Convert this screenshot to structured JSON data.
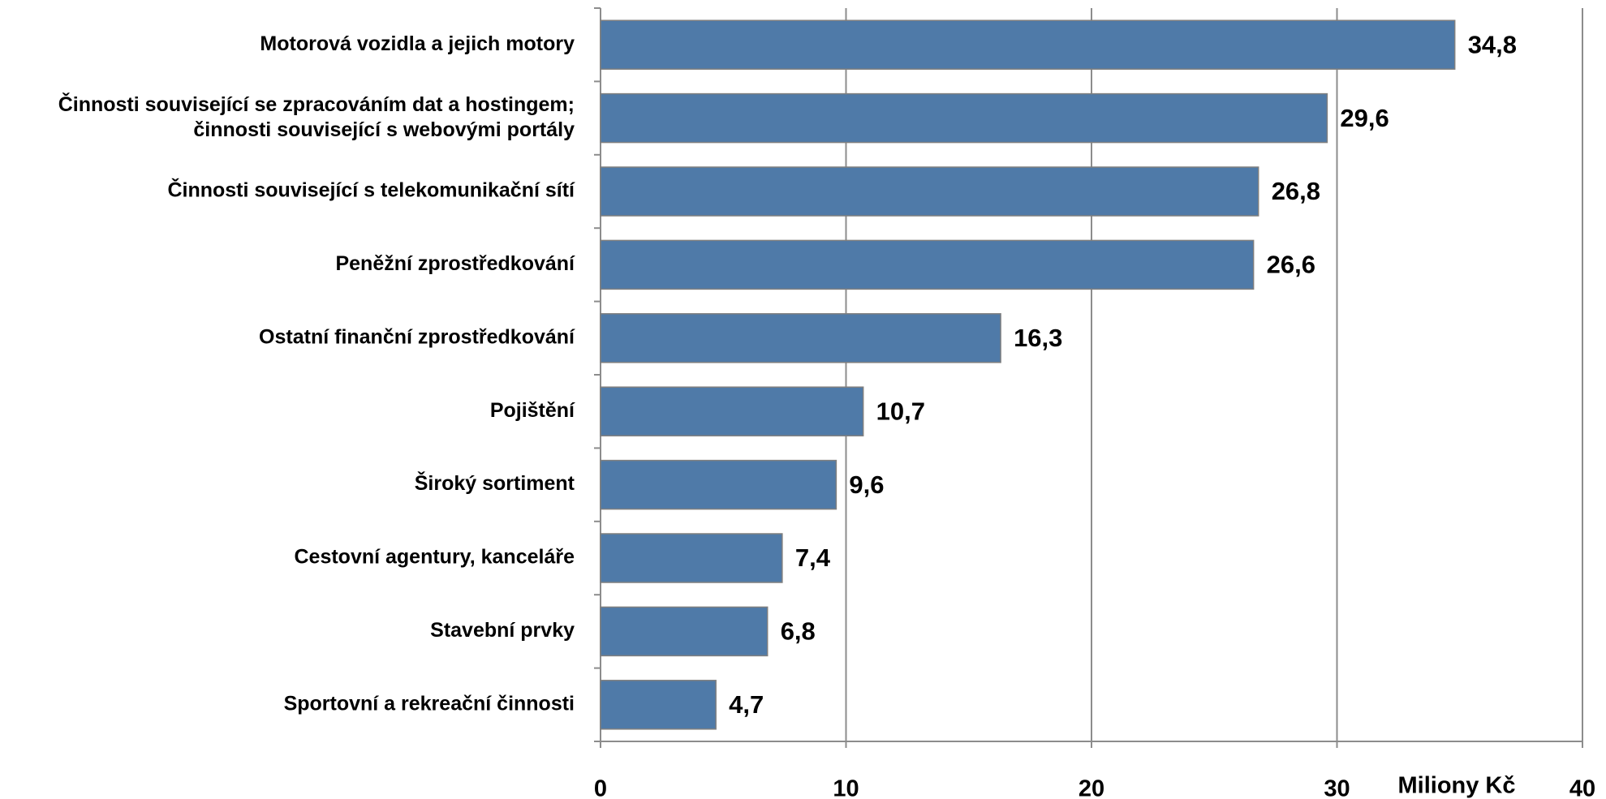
{
  "chart_data": {
    "type": "barh",
    "x_label": "Miliony Kč",
    "categories": [
      "Motorová vozidla a jejich motory",
      "Činnosti související se zpracováním dat a hostingem;\nčinnosti související s webovými portály",
      "Činnosti související s telekomunikační sítí",
      "Peněžní zprostředkování",
      "Ostatní finanční zprostředkování",
      "Pojištění",
      "Široký sortiment",
      "Cestovní agentury, kanceláře",
      "Stavební prvky",
      "Sportovní a rekreační činnosti"
    ],
    "values": [
      34.8,
      29.6,
      26.8,
      26.6,
      16.3,
      10.7,
      9.6,
      7.4,
      6.8,
      4.7
    ],
    "value_labels": [
      "34,8",
      "29,6",
      "26,8",
      "26,6",
      "16,3",
      "10,7",
      "9,6",
      "7,4",
      "6,8",
      "4,7"
    ],
    "color": "#4f7aa8",
    "xlim": [
      0,
      40
    ],
    "xticks": [
      0,
      10,
      20,
      30,
      40
    ],
    "grid": true
  }
}
